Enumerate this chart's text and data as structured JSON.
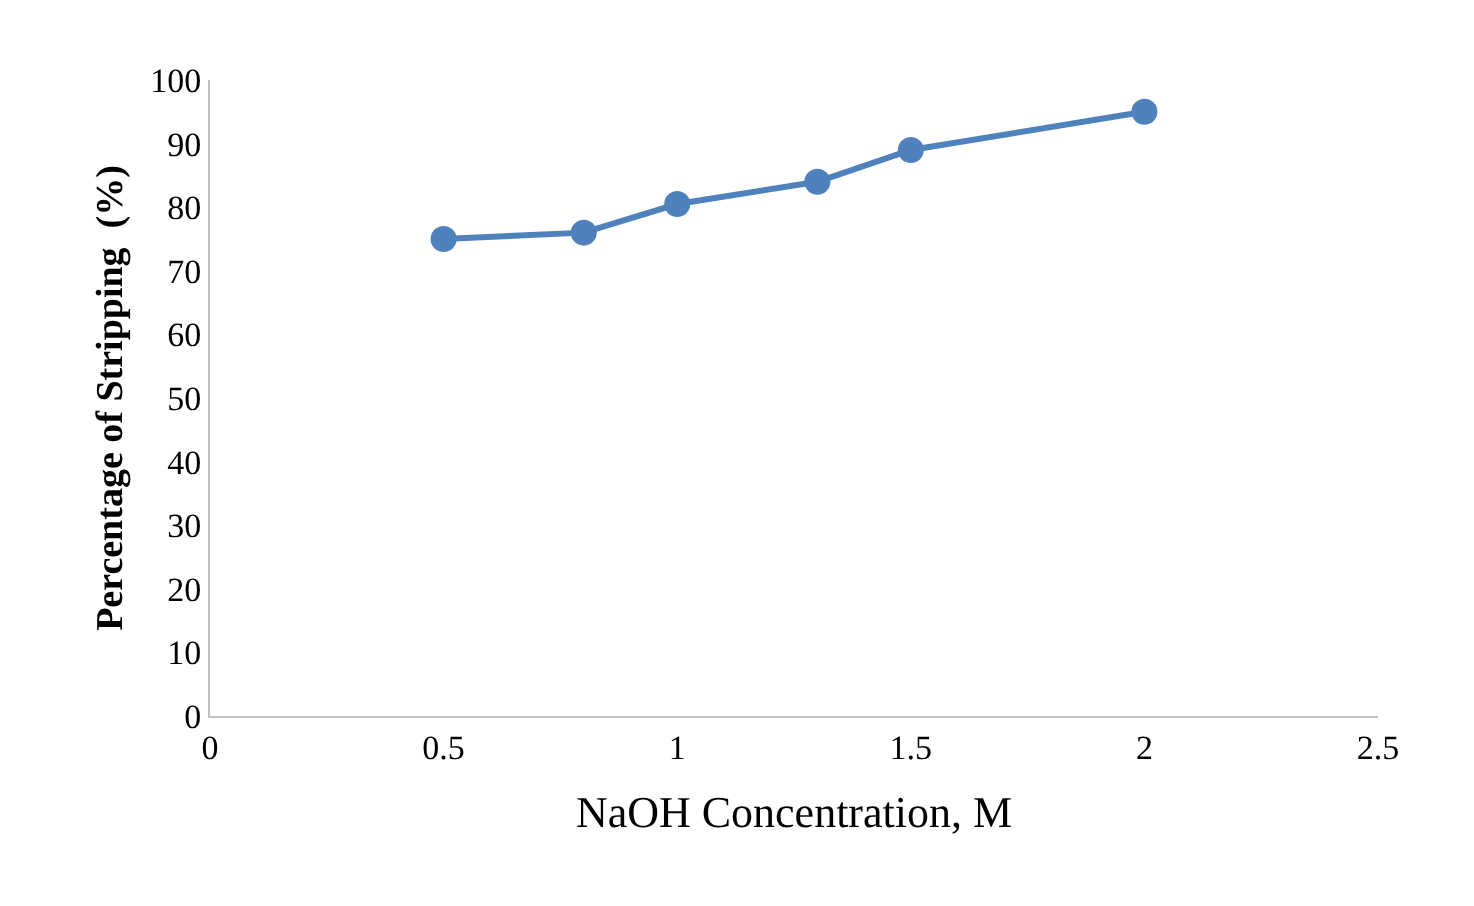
{
  "chart_data": {
    "type": "line",
    "xlabel": "NaOH Concentration, M",
    "ylabel": "Percentage of Stripping  (%)",
    "x": [
      0.5,
      0.8,
      1,
      1.3,
      1.5,
      2
    ],
    "series": [
      {
        "color": "#4f81bd",
        "values": [
          75,
          76,
          80.5,
          84,
          89,
          95
        ]
      }
    ],
    "xlim": [
      0,
      2.5
    ],
    "xticks": [
      0,
      0.5,
      1,
      1.5,
      2,
      2.5
    ],
    "ylim": [
      0,
      100
    ],
    "yticks": [
      0,
      10,
      20,
      30,
      40,
      50,
      60,
      70,
      80,
      90,
      100
    ],
    "marker": "circle",
    "line_style": "solid"
  }
}
